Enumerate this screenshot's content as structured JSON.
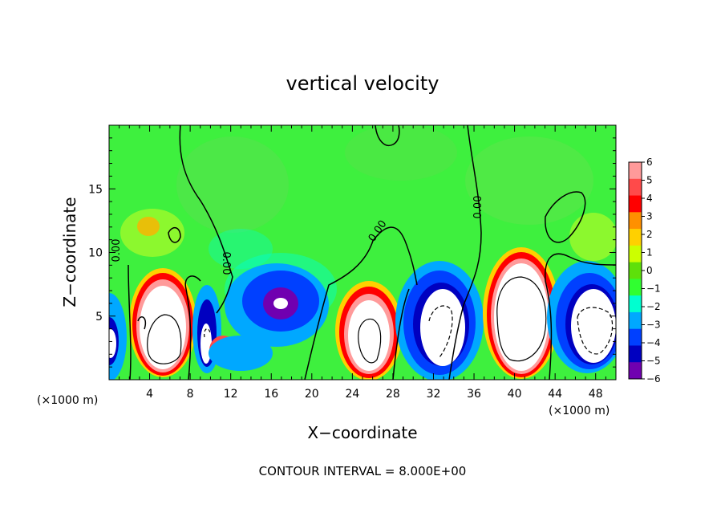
{
  "chart_data": {
    "type": "heatmap",
    "title": "vertical velocity",
    "xlabel": "X−coordinate",
    "ylabel": "Z−coordinate",
    "x_unit_label_left": "(×1000 m)",
    "x_unit_label_right": "(×1000 m)",
    "xlim": [
      0,
      50
    ],
    "ylim": [
      0,
      20
    ],
    "x_ticks": [
      4,
      8,
      12,
      16,
      20,
      24,
      28,
      32,
      36,
      40,
      44,
      48
    ],
    "y_ticks": [
      5,
      10,
      15
    ],
    "footer": "CONTOUR INTERVAL = 8.000E+00",
    "colorbar": {
      "ticks": [
        "6",
        "5",
        "4",
        "3",
        "2",
        "1",
        "0",
        "−1",
        "−2",
        "−3",
        "−4",
        "−5",
        "−6"
      ],
      "colors": [
        "#ff9a9a",
        "#ff4a4a",
        "#ff0000",
        "#ff9000",
        "#ffd000",
        "#ccff00",
        "#5ee00a",
        "#30ff30",
        "#00ffd0",
        "#00a8ff",
        "#0040ff",
        "#0000c0",
        "#7000b0"
      ]
    },
    "background_color": "#3ef03e",
    "contour_labels": [
      "0.00",
      "0.00",
      "0.00",
      "0.00"
    ],
    "features": [
      {
        "kind": "updraft",
        "x": 5.5,
        "z": 3.5,
        "peak": 6
      },
      {
        "kind": "downdraft",
        "x": 9.5,
        "z": 2.5,
        "peak": -6
      },
      {
        "kind": "updraft",
        "x": 11.5,
        "z": 2.2,
        "peak": 6
      },
      {
        "kind": "downdraft",
        "x": 16.5,
        "z": 5.5,
        "peak": -6
      },
      {
        "kind": "updraft",
        "x": 25.5,
        "z": 3.5,
        "peak": 6
      },
      {
        "kind": "downdraft",
        "x": 32.5,
        "z": 4.0,
        "peak": -6
      },
      {
        "kind": "updraft",
        "x": 40.5,
        "z": 4.8,
        "peak": 6
      },
      {
        "kind": "downdraft",
        "x": 47.0,
        "z": 4.0,
        "peak": -6
      }
    ]
  }
}
